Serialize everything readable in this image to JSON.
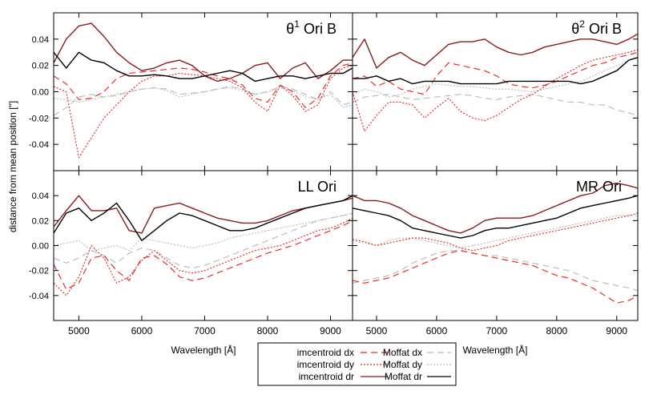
{
  "figure": {
    "ylabel": "distance from mean position [\"]",
    "xlabel": "Wavelength [Å]"
  },
  "legend": {
    "entries": [
      {
        "label": "imcentroid dx",
        "series": "imcentroid_dx",
        "color": "#e8201a",
        "dash": "8,5"
      },
      {
        "label": "imcentroid dy",
        "series": "imcentroid_dy",
        "color": "#e8201a",
        "dash": "2,2"
      },
      {
        "label": "imcentroid dr",
        "series": "imcentroid_dr",
        "color": "#8b1a1a",
        "dash": ""
      },
      {
        "label": "Moffat dx",
        "series": "moffat_dx",
        "color": "#b8b8b8",
        "dash": "8,5"
      },
      {
        "label": "Moffat dy",
        "series": "moffat_dy",
        "color": "#b8b8b8",
        "dash": "2,2"
      },
      {
        "label": "Moffat dr",
        "series": "moffat_dr",
        "color": "#000000",
        "dash": ""
      }
    ]
  },
  "chart_data": [
    {
      "type": "line",
      "title": "θ¹ Ori B",
      "title_main": "θ",
      "title_sup": "1",
      "title_rest": " Ori B",
      "panel": "top-left",
      "xlim": [
        4600,
        9350
      ],
      "ylim": [
        -0.06,
        0.06
      ],
      "xticks": [
        5000,
        6000,
        7000,
        8000,
        9000
      ],
      "yticks": [
        -0.04,
        -0.02,
        0.0,
        0.02,
        0.04
      ],
      "x": [
        4600,
        4800,
        5000,
        5200,
        5400,
        5600,
        5800,
        6000,
        6200,
        6400,
        6600,
        6800,
        7000,
        7200,
        7400,
        7600,
        7800,
        8000,
        8200,
        8400,
        8600,
        8800,
        9000,
        9200,
        9350
      ],
      "series": [
        {
          "name": "imcentroid dx",
          "key": "imcentroid_dx",
          "values": [
            0.012,
            0.006,
            -0.006,
            -0.005,
            0.0,
            0.01,
            0.014,
            0.015,
            0.016,
            0.017,
            0.018,
            0.017,
            0.015,
            0.012,
            0.01,
            0.005,
            -0.005,
            -0.008,
            0.005,
            0.0,
            -0.012,
            -0.005,
            0.012,
            0.02,
            0.022
          ]
        },
        {
          "name": "imcentroid dy",
          "key": "imcentroid_dy",
          "values": [
            0.004,
            0.0,
            -0.05,
            -0.035,
            -0.02,
            -0.01,
            0.0,
            0.008,
            0.012,
            0.012,
            0.014,
            0.013,
            0.012,
            0.01,
            0.008,
            0.003,
            -0.008,
            -0.015,
            0.005,
            -0.003,
            -0.015,
            -0.01,
            0.01,
            0.018,
            0.02
          ]
        },
        {
          "name": "imcentroid dr",
          "key": "imcentroid_dr",
          "values": [
            0.022,
            0.04,
            0.05,
            0.052,
            0.042,
            0.03,
            0.022,
            0.016,
            0.018,
            0.022,
            0.024,
            0.02,
            0.012,
            0.008,
            0.01,
            0.014,
            0.02,
            0.022,
            0.01,
            0.018,
            0.022,
            0.01,
            0.016,
            0.024,
            0.024
          ]
        },
        {
          "name": "Moffat dx",
          "key": "moffat_dx",
          "values": [
            -0.018,
            -0.012,
            -0.004,
            -0.002,
            -0.004,
            -0.003,
            0.0,
            0.002,
            0.003,
            0.002,
            -0.002,
            -0.001,
            0.0,
            0.002,
            0.004,
            0.002,
            -0.002,
            0.0,
            0.004,
            0.002,
            -0.002,
            -0.006,
            0.0,
            -0.01,
            -0.008
          ]
        },
        {
          "name": "Moffat dy",
          "key": "moffat_dy",
          "values": [
            -0.005,
            -0.006,
            -0.008,
            -0.006,
            -0.004,
            -0.002,
            0.0,
            0.002,
            0.003,
            0.001,
            -0.004,
            -0.002,
            0.0,
            0.002,
            0.003,
            0.001,
            -0.002,
            0.0,
            0.003,
            0.001,
            -0.004,
            -0.006,
            -0.002,
            -0.012,
            -0.01
          ]
        },
        {
          "name": "Moffat dr",
          "key": "moffat_dr",
          "values": [
            0.03,
            0.018,
            0.03,
            0.024,
            0.022,
            0.016,
            0.012,
            0.012,
            0.013,
            0.012,
            0.01,
            0.01,
            0.012,
            0.014,
            0.016,
            0.014,
            0.008,
            0.01,
            0.012,
            0.012,
            0.01,
            0.012,
            0.014,
            0.014,
            0.018
          ]
        }
      ]
    },
    {
      "type": "line",
      "title": "θ² Ori B",
      "title_main": "θ",
      "title_sup": "2",
      "title_rest": " Ori B",
      "panel": "top-right",
      "xlim": [
        4600,
        9350
      ],
      "ylim": [
        -0.06,
        0.06
      ],
      "xticks": [
        5000,
        6000,
        7000,
        8000,
        9000
      ],
      "yticks": [
        -0.04,
        -0.02,
        0.0,
        0.02,
        0.04
      ],
      "x": [
        4600,
        4800,
        5000,
        5200,
        5400,
        5600,
        5800,
        6000,
        6200,
        6400,
        6600,
        6800,
        7000,
        7200,
        7400,
        7600,
        7800,
        8000,
        8200,
        8400,
        8600,
        8800,
        9000,
        9200,
        9350
      ],
      "series": [
        {
          "name": "imcentroid dx",
          "key": "imcentroid_dx",
          "values": [
            0.01,
            0.012,
            0.004,
            0.008,
            0.002,
            0.0,
            -0.002,
            0.012,
            0.022,
            0.02,
            0.018,
            0.016,
            0.012,
            0.006,
            0.004,
            0.003,
            0.005,
            0.008,
            0.012,
            0.016,
            0.02,
            0.022,
            0.026,
            0.028,
            0.03
          ]
        },
        {
          "name": "imcentroid dy",
          "key": "imcentroid_dy",
          "values": [
            0.0,
            -0.03,
            -0.018,
            -0.008,
            -0.008,
            -0.01,
            -0.02,
            -0.012,
            -0.005,
            -0.015,
            -0.02,
            -0.022,
            -0.018,
            -0.012,
            -0.006,
            -0.002,
            0.004,
            0.01,
            0.015,
            0.02,
            0.024,
            0.026,
            0.028,
            0.03,
            0.032
          ]
        },
        {
          "name": "imcentroid dr",
          "key": "imcentroid_dr",
          "values": [
            0.026,
            0.04,
            0.018,
            0.026,
            0.03,
            0.024,
            0.02,
            0.028,
            0.036,
            0.038,
            0.038,
            0.04,
            0.034,
            0.03,
            0.028,
            0.03,
            0.034,
            0.036,
            0.038,
            0.04,
            0.04,
            0.038,
            0.036,
            0.04,
            0.044
          ]
        },
        {
          "name": "Moffat dx",
          "key": "moffat_dx",
          "values": [
            -0.008,
            -0.004,
            -0.003,
            -0.002,
            -0.004,
            -0.006,
            -0.005,
            -0.004,
            -0.003,
            -0.002,
            -0.003,
            -0.005,
            -0.006,
            -0.004,
            -0.003,
            -0.002,
            -0.004,
            -0.006,
            -0.008,
            -0.008,
            -0.01,
            -0.01,
            -0.014,
            -0.016,
            -0.018
          ]
        },
        {
          "name": "Moffat dy",
          "key": "moffat_dy",
          "values": [
            -0.002,
            0.002,
            0.0,
            -0.004,
            -0.002,
            0.002,
            0.004,
            0.006,
            0.005,
            0.004,
            0.004,
            0.003,
            0.002,
            0.002,
            0.001,
            0.0,
            0.002,
            0.004,
            0.006,
            0.008,
            0.012,
            0.016,
            0.02,
            0.024,
            0.026
          ]
        },
        {
          "name": "Moffat dr",
          "key": "moffat_dr",
          "values": [
            0.01,
            0.01,
            0.012,
            0.008,
            0.01,
            0.006,
            0.008,
            0.008,
            0.008,
            0.006,
            0.006,
            0.006,
            0.006,
            0.008,
            0.008,
            0.008,
            0.008,
            0.008,
            0.008,
            0.006,
            0.008,
            0.012,
            0.016,
            0.024,
            0.026
          ]
        }
      ]
    },
    {
      "type": "line",
      "title": "LL Ori",
      "panel": "bottom-left",
      "xlim": [
        4600,
        9350
      ],
      "ylim": [
        -0.06,
        0.06
      ],
      "xticks": [
        5000,
        6000,
        7000,
        8000,
        9000
      ],
      "yticks": [
        -0.04,
        -0.02,
        0.0,
        0.02,
        0.04
      ],
      "x": [
        4600,
        4800,
        5000,
        5200,
        5400,
        5600,
        5800,
        6000,
        6200,
        6400,
        6600,
        6800,
        7000,
        7200,
        7400,
        7600,
        7800,
        8000,
        8200,
        8400,
        8600,
        8800,
        9000,
        9200,
        9350
      ],
      "series": [
        {
          "name": "imcentroid dx",
          "key": "imcentroid_dx",
          "values": [
            -0.015,
            -0.035,
            -0.03,
            -0.01,
            -0.008,
            -0.02,
            -0.028,
            -0.01,
            -0.008,
            -0.015,
            -0.025,
            -0.028,
            -0.026,
            -0.022,
            -0.018,
            -0.014,
            -0.01,
            -0.006,
            -0.003,
            0.0,
            0.004,
            0.008,
            0.012,
            0.016,
            0.02
          ]
        },
        {
          "name": "imcentroid dy",
          "key": "imcentroid_dy",
          "values": [
            -0.03,
            -0.04,
            -0.025,
            0.0,
            -0.01,
            -0.03,
            -0.025,
            -0.012,
            -0.004,
            -0.012,
            -0.02,
            -0.022,
            -0.02,
            -0.016,
            -0.012,
            -0.008,
            -0.004,
            -0.002,
            0.0,
            0.004,
            0.008,
            0.012,
            0.014,
            0.018,
            0.022
          ]
        },
        {
          "name": "imcentroid dr",
          "key": "imcentroid_dr",
          "values": [
            0.015,
            0.028,
            0.04,
            0.028,
            0.028,
            0.03,
            0.012,
            0.01,
            0.03,
            0.032,
            0.034,
            0.03,
            0.026,
            0.022,
            0.02,
            0.018,
            0.018,
            0.02,
            0.024,
            0.028,
            0.03,
            0.032,
            0.034,
            0.036,
            0.038
          ]
        },
        {
          "name": "Moffat dx",
          "key": "moffat_dx",
          "values": [
            -0.01,
            -0.014,
            -0.01,
            -0.004,
            -0.008,
            -0.014,
            -0.006,
            -0.002,
            -0.004,
            -0.01,
            -0.016,
            -0.018,
            -0.016,
            -0.012,
            -0.008,
            -0.004,
            0.0,
            0.004,
            0.008,
            0.012,
            0.016,
            0.02,
            0.022,
            0.024,
            0.026
          ]
        },
        {
          "name": "Moffat dy",
          "key": "moffat_dy",
          "values": [
            0.0,
            0.002,
            0.004,
            -0.004,
            -0.002,
            0.0,
            -0.004,
            0.006,
            0.004,
            0.002,
            0.0,
            -0.002,
            0.0,
            0.002,
            0.006,
            0.008,
            0.01,
            0.012,
            0.014,
            0.016,
            0.018,
            0.02,
            0.022,
            0.024,
            0.026
          ]
        },
        {
          "name": "Moffat dr",
          "key": "moffat_dr",
          "values": [
            0.01,
            0.026,
            0.03,
            0.02,
            0.026,
            0.034,
            0.02,
            0.004,
            0.012,
            0.02,
            0.026,
            0.024,
            0.02,
            0.016,
            0.012,
            0.012,
            0.014,
            0.018,
            0.022,
            0.026,
            0.03,
            0.032,
            0.034,
            0.036,
            0.04
          ]
        }
      ]
    },
    {
      "type": "line",
      "title": "MR Ori",
      "panel": "bottom-right",
      "xlim": [
        4600,
        9350
      ],
      "ylim": [
        -0.06,
        0.06
      ],
      "xticks": [
        5000,
        6000,
        7000,
        8000,
        9000
      ],
      "yticks": [
        -0.04,
        -0.02,
        0.0,
        0.02,
        0.04
      ],
      "x": [
        4600,
        4800,
        5000,
        5200,
        5400,
        5600,
        5800,
        6000,
        6200,
        6400,
        6600,
        6800,
        7000,
        7200,
        7400,
        7600,
        7800,
        8000,
        8200,
        8400,
        8600,
        8800,
        9000,
        9200,
        9350
      ],
      "series": [
        {
          "name": "imcentroid dx",
          "key": "imcentroid_dx",
          "values": [
            -0.028,
            -0.03,
            -0.028,
            -0.026,
            -0.022,
            -0.018,
            -0.014,
            -0.01,
            -0.006,
            -0.004,
            -0.006,
            -0.008,
            -0.01,
            -0.012,
            -0.014,
            -0.016,
            -0.02,
            -0.024,
            -0.026,
            -0.03,
            -0.034,
            -0.04,
            -0.046,
            -0.044,
            -0.04
          ]
        },
        {
          "name": "imcentroid dy",
          "key": "imcentroid_dy",
          "values": [
            0.005,
            0.003,
            0.0,
            0.002,
            0.004,
            0.006,
            0.006,
            0.004,
            0.002,
            -0.002,
            -0.004,
            -0.002,
            0.0,
            0.004,
            0.006,
            0.008,
            0.01,
            0.012,
            0.014,
            0.016,
            0.018,
            0.02,
            0.022,
            0.024,
            0.026
          ]
        },
        {
          "name": "imcentroid dr",
          "key": "imcentroid_dr",
          "values": [
            0.04,
            0.036,
            0.036,
            0.034,
            0.03,
            0.024,
            0.02,
            0.016,
            0.012,
            0.01,
            0.014,
            0.02,
            0.022,
            0.022,
            0.022,
            0.024,
            0.028,
            0.032,
            0.036,
            0.04,
            0.042,
            0.048,
            0.05,
            0.048,
            0.046
          ]
        },
        {
          "name": "Moffat dx",
          "key": "moffat_dx",
          "values": [
            -0.03,
            -0.028,
            -0.026,
            -0.024,
            -0.02,
            -0.014,
            -0.01,
            -0.006,
            -0.004,
            -0.004,
            -0.006,
            -0.008,
            -0.008,
            -0.01,
            -0.012,
            -0.014,
            -0.016,
            -0.018,
            -0.02,
            -0.024,
            -0.028,
            -0.03,
            -0.032,
            -0.034,
            -0.036
          ]
        },
        {
          "name": "Moffat dy",
          "key": "moffat_dy",
          "values": [
            0.004,
            0.002,
            0.0,
            0.004,
            0.006,
            0.006,
            0.004,
            0.002,
            0.0,
            -0.002,
            0.0,
            0.002,
            0.004,
            0.006,
            0.008,
            0.01,
            0.012,
            0.014,
            0.016,
            0.018,
            0.02,
            0.022,
            0.024,
            0.024,
            0.024
          ]
        },
        {
          "name": "Moffat dr",
          "key": "moffat_dr",
          "values": [
            0.03,
            0.028,
            0.026,
            0.024,
            0.02,
            0.014,
            0.012,
            0.01,
            0.008,
            0.006,
            0.008,
            0.012,
            0.014,
            0.014,
            0.016,
            0.018,
            0.02,
            0.022,
            0.026,
            0.03,
            0.032,
            0.034,
            0.036,
            0.038,
            0.04
          ]
        }
      ]
    }
  ]
}
